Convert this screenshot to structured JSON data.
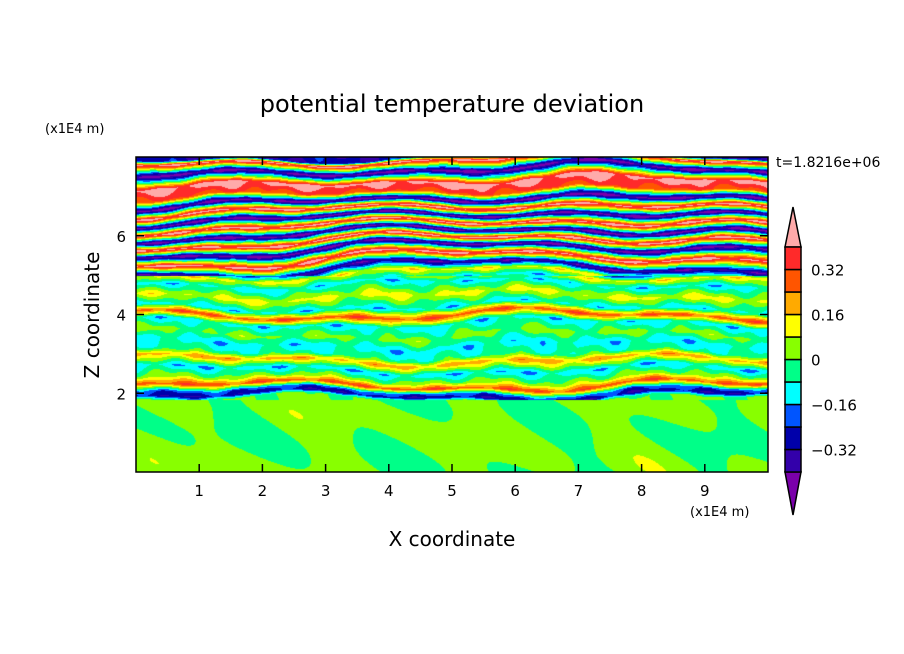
{
  "chart_data": {
    "type": "heatmap",
    "title": "potential temperature deviation",
    "xlabel": "X coordinate",
    "ylabel": "Z coordinate",
    "x_unit": "(x1E4 m)",
    "y_unit": "(x1E4 m)",
    "time_label": "t=1.8216e+06",
    "xlim": [
      0,
      10
    ],
    "ylim": [
      0,
      8
    ],
    "x_ticks": [
      1,
      2,
      3,
      4,
      5,
      6,
      7,
      8,
      9
    ],
    "y_ticks": [
      2,
      4,
      6
    ],
    "levels": [
      -0.4,
      -0.32,
      -0.24,
      -0.16,
      -0.08,
      0,
      0.08,
      0.16,
      0.24,
      0.32,
      0.4
    ],
    "colorbar_labels": [
      {
        "value": 0.32,
        "text": "0.32"
      },
      {
        "value": 0.16,
        "text": "0.16"
      },
      {
        "value": 0,
        "text": "0"
      },
      {
        "value": -0.16,
        "text": "−0.16"
      },
      {
        "value": -0.32,
        "text": "−0.32"
      }
    ],
    "colors": {
      "under": "#7a00aa",
      "bins": [
        "#3300aa",
        "#0000aa",
        "#0055ff",
        "#00ffff",
        "#00ff88",
        "#88ff00",
        "#ffff00",
        "#ffaa00",
        "#ff5500",
        "#ff2a2a"
      ],
      "over": "#ffaaaa"
    },
    "layers_z_value": [
      [
        0.0,
        0.02
      ],
      [
        1.2,
        0.02
      ],
      [
        1.85,
        0.01
      ],
      [
        1.95,
        -0.3
      ],
      [
        2.05,
        -0.2
      ],
      [
        2.2,
        0.3
      ],
      [
        2.35,
        0.05
      ],
      [
        2.6,
        -0.14
      ],
      [
        2.85,
        0.2
      ],
      [
        3.0,
        -0.05
      ],
      [
        3.25,
        -0.12
      ],
      [
        3.5,
        0.02
      ],
      [
        3.8,
        -0.12
      ],
      [
        4.0,
        0.3
      ],
      [
        4.2,
        -0.12
      ],
      [
        4.5,
        0.1
      ],
      [
        4.8,
        -0.12
      ],
      [
        5.0,
        0.12
      ],
      [
        5.2,
        -0.38
      ],
      [
        5.45,
        0.45
      ],
      [
        5.7,
        -0.45
      ],
      [
        5.9,
        0.45
      ],
      [
        6.1,
        -0.45
      ],
      [
        6.3,
        0.45
      ],
      [
        6.5,
        -0.45
      ],
      [
        6.7,
        0.45
      ],
      [
        6.9,
        -0.45
      ],
      [
        7.1,
        0.3
      ],
      [
        7.35,
        0.45
      ],
      [
        7.65,
        -0.45
      ],
      [
        7.9,
        0.45
      ],
      [
        8.0,
        -0.3
      ]
    ]
  }
}
